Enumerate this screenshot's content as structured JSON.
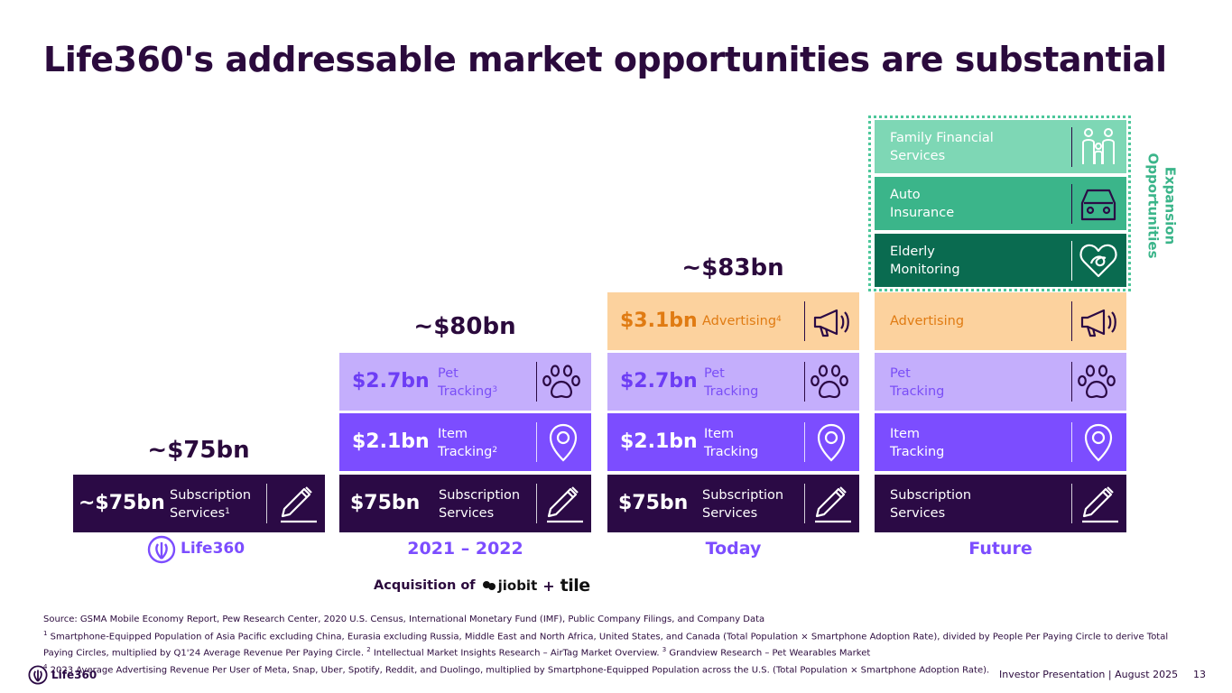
{
  "title": "Life360's addressable market opportunities are substantial",
  "columns": {
    "col1": {
      "total": "~$75bn",
      "sub_amount": "~$75bn",
      "sub_label_1": "Subscription",
      "sub_label_2": "Services",
      "sub_sup": "1",
      "brand": "Life360"
    },
    "col2": {
      "total": "~$80bn",
      "pet_amount": "$2.7bn",
      "pet_label_1": "Pet",
      "pet_label_2": "Tracking",
      "pet_sup": "3",
      "item_amount": "$2.1bn",
      "item_label_1": "Item",
      "item_label_2": "Tracking",
      "item_sup": "2",
      "sub_amount": "$75bn",
      "sub_label_1": "Subscription",
      "sub_label_2": "Services",
      "period": "2021 – 2022"
    },
    "col3": {
      "total": "~$83bn",
      "adv_amount": "$3.1bn",
      "adv_label": "Advertising",
      "adv_sup": "4",
      "pet_amount": "$2.7bn",
      "pet_label_1": "Pet",
      "pet_label_2": "Tracking",
      "item_amount": "$2.1bn",
      "item_label_1": "Item",
      "item_label_2": "Tracking",
      "sub_amount": "$75bn",
      "sub_label_1": "Subscription",
      "sub_label_2": "Services",
      "period": "Today"
    },
    "col4": {
      "fam_label_1": "Family Financial",
      "fam_label_2": "Services",
      "auto_label_1": "Auto",
      "auto_label_2": "Insurance",
      "eld_label_1": "Elderly",
      "eld_label_2": "Monitoring",
      "adv_label": "Advertising",
      "pet_label_1": "Pet",
      "pet_label_2": "Tracking",
      "item_label_1": "Item",
      "item_label_2": "Tracking",
      "sub_label_1": "Subscription",
      "sub_label_2": "Services",
      "period": "Future",
      "expansion_1": "Expansion",
      "expansion_2": "Opportunities"
    }
  },
  "acquisition": {
    "prefix": "Acquisition of",
    "brand1": "jiobit",
    "plus": "+",
    "brand2": "tile"
  },
  "footnotes": {
    "source": "Source: GSMA Mobile Economy Report, Pew Research Center, 2020 U.S. Census, International Monetary Fund (IMF), Public Company Filings, and Company Data",
    "n1_mark": "1",
    "n1": "Smartphone-Equipped Population of Asia Pacific excluding China, Eurasia excluding Russia, Middle East and North Africa, United States, and Canada (Total Population × Smartphone Adoption Rate), divided by People Per Paying Circle to derive Total Paying Circles, multiplied by Q1'24 Average Revenue Per Paying Circle.",
    "n2_mark": "2",
    "n2": "Intellectual Market Insights Research – AirTag Market Overview.",
    "n3_mark": "3",
    "n3": "Grandview Research – Pet Wearables Market",
    "n4_mark": "4",
    "n4": "2023 Average Advertising Revenue Per User of Meta, Snap, Uber, Spotify, Reddit, and Duolingo, multiplied by Smartphone-Equipped Population across the U.S. (Total Population × Smartphone Adoption Rate)."
  },
  "footer": {
    "logo": "Life360",
    "presentation": "Investor Presentation",
    "separator": "|",
    "date": "August 2025",
    "page": "13"
  },
  "colors": {
    "subscription": "#2b0a45",
    "item": "#7c4dff",
    "pet": "#c4aefc",
    "advertising": "#fcd29e",
    "family": "#7ed7b5",
    "auto": "#3bb58a",
    "elderly": "#0a6b50"
  }
}
